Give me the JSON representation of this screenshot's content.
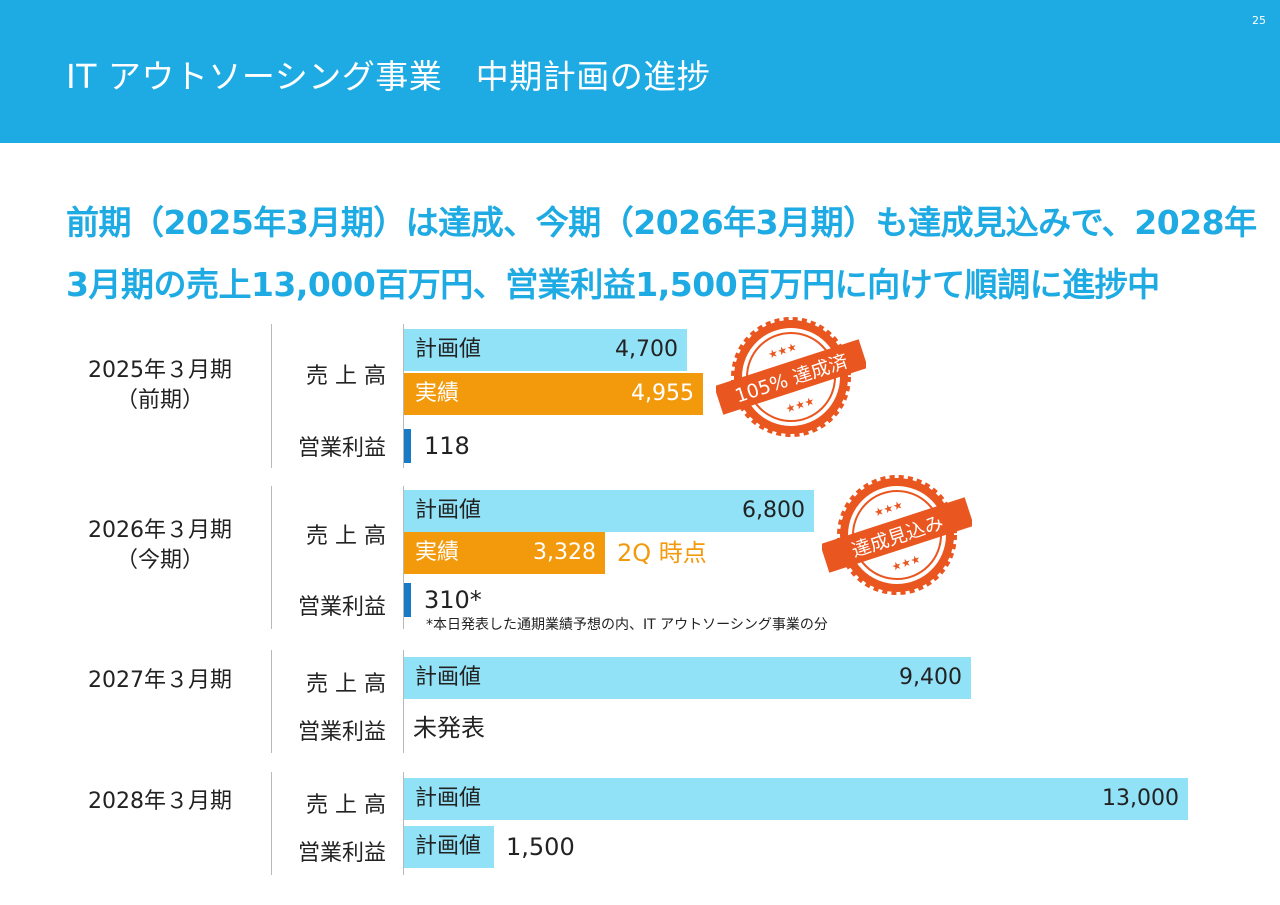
{
  "page_number": "25",
  "title": "IT アウトソーシング事業　中期計画の進捗",
  "headline": {
    "line1": "前期（2025年3月期）は達成、今期（2026年3月期）も達成見込みで、2028年",
    "line2": "3月期の売上13,000百万円、営業利益1,500百万円に向けて順調に進捗中"
  },
  "colors": {
    "header": "#1eaae2",
    "plan": "#91e1f7",
    "actual": "#f39a0c",
    "profit_tick": "#1a7bc4",
    "stamp": "#e9561f"
  },
  "stamps": {
    "fy2025": {
      "text": "105% 達成済",
      "stars": "★★★"
    },
    "fy2026": {
      "text": "達成見込み",
      "stars": "★★★"
    }
  },
  "chart_data": {
    "type": "bar",
    "orientation": "horizontal",
    "unit": "百万円",
    "title": "IT アウトソーシング事業　中期計画の進捗",
    "periods": [
      {
        "year": "2025年３月期",
        "sub": "（前期）",
        "sales_label": "売 上 高",
        "profit_label": "営業利益",
        "sales": [
          {
            "label": "計画値",
            "value": 4700,
            "display": "4,700",
            "kind": "plan"
          },
          {
            "label": "実績",
            "value": 4955,
            "display": "4,955",
            "kind": "actual"
          }
        ],
        "profit": {
          "value": 118,
          "display": "118"
        }
      },
      {
        "year": "2026年３月期",
        "sub": "（今期）",
        "sales_label": "売 上 高",
        "profit_label": "営業利益",
        "sales": [
          {
            "label": "計画値",
            "value": 6800,
            "display": "6,800",
            "kind": "plan"
          },
          {
            "label": "実績",
            "value": 3328,
            "display": "3,328",
            "kind": "actual",
            "note": "2Q 時点"
          }
        ],
        "profit": {
          "value": 310,
          "display": "310*"
        },
        "footnote": "*本日発表した通期業績予想の内、IT アウトソーシング事業の分"
      },
      {
        "year": "2027年３月期",
        "sales_label": "売 上 高",
        "profit_label": "営業利益",
        "sales": [
          {
            "label": "計画値",
            "value": 9400,
            "display": "9,400",
            "kind": "plan"
          }
        ],
        "profit": {
          "display": "未発表"
        }
      },
      {
        "year": "2028年３月期",
        "sales_label": "売 上 高",
        "profit_label": "営業利益",
        "sales": [
          {
            "label": "計画値",
            "value": 13000,
            "display": "13,000",
            "kind": "plan"
          }
        ],
        "profit": {
          "label": "計画値",
          "value": 1500,
          "display": "1,500",
          "kind": "plan"
        }
      }
    ]
  }
}
